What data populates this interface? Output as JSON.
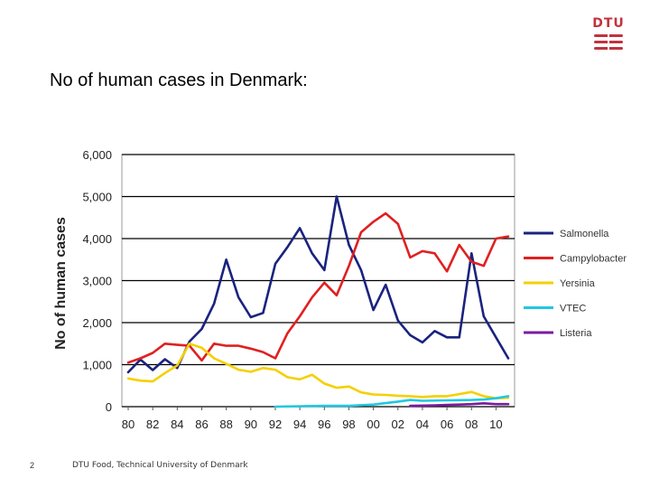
{
  "slide": {
    "title": "No of human cases in Denmark:",
    "page_number": "2",
    "footer": "DTU Food, Technical University of Denmark",
    "logo_text": "DTU",
    "logo_color": "#c0333d"
  },
  "chart_data": {
    "type": "line",
    "title": "",
    "xlabel": "",
    "ylabel": "No of human cases",
    "ylim": [
      0,
      6000
    ],
    "yticks": [
      0,
      1000,
      2000,
      3000,
      4000,
      5000,
      6000
    ],
    "ytick_labels": [
      "0",
      "1,000",
      "2,000",
      "3,000",
      "4,000",
      "5,000",
      "6,000"
    ],
    "xlim": [
      1980,
      2011
    ],
    "xticks": [
      1980,
      1982,
      1984,
      1986,
      1988,
      1990,
      1992,
      1994,
      1996,
      1998,
      2000,
      2002,
      2004,
      2006,
      2008,
      2010
    ],
    "xtick_labels": [
      "80",
      "82",
      "84",
      "86",
      "88",
      "90",
      "92",
      "94",
      "96",
      "98",
      "00",
      "02",
      "04",
      "06",
      "08",
      "10"
    ],
    "grid": "horizontal",
    "legend_position": "right",
    "series": [
      {
        "name": "Salmonella",
        "color": "#1a237e",
        "x": [
          1980,
          1981,
          1982,
          1983,
          1984,
          1985,
          1986,
          1987,
          1988,
          1989,
          1990,
          1991,
          1992,
          1993,
          1994,
          1995,
          1996,
          1997,
          1998,
          1999,
          2000,
          2001,
          2002,
          2003,
          2004,
          2005,
          2006,
          2007,
          2008,
          2009,
          2010,
          2011
        ],
        "values": [
          820,
          1120,
          870,
          1130,
          920,
          1550,
          1850,
          2450,
          3500,
          2600,
          2130,
          2230,
          3400,
          3800,
          4250,
          3650,
          3250,
          5000,
          3850,
          3250,
          2300,
          2900,
          2050,
          1700,
          1530,
          1800,
          1650,
          1650,
          3650,
          2150,
          1650,
          1150
        ]
      },
      {
        "name": "Campylobacter",
        "color": "#e02020",
        "x": [
          1980,
          1981,
          1982,
          1983,
          1984,
          1985,
          1986,
          1987,
          1988,
          1989,
          1990,
          1991,
          1992,
          1993,
          1994,
          1995,
          1996,
          1997,
          1998,
          1999,
          2000,
          2001,
          2002,
          2003,
          2004,
          2005,
          2006,
          2007,
          2008,
          2009,
          2010,
          2011
        ],
        "values": [
          1050,
          1150,
          1280,
          1500,
          1470,
          1450,
          1100,
          1500,
          1450,
          1450,
          1380,
          1300,
          1150,
          1750,
          2150,
          2600,
          2950,
          2650,
          3350,
          4150,
          4400,
          4600,
          4350,
          3550,
          3700,
          3650,
          3220,
          3850,
          3450,
          3350,
          4000,
          4050
        ]
      },
      {
        "name": "Yersinia",
        "color": "#f5d000",
        "x": [
          1980,
          1981,
          1982,
          1983,
          1984,
          1985,
          1986,
          1987,
          1988,
          1989,
          1990,
          1991,
          1992,
          1993,
          1994,
          1995,
          1996,
          1997,
          1998,
          1999,
          2000,
          2001,
          2002,
          2003,
          2004,
          2005,
          2006,
          2007,
          2008,
          2009,
          2010,
          2011
        ],
        "values": [
          670,
          620,
          600,
          800,
          980,
          1500,
          1400,
          1150,
          1020,
          880,
          830,
          920,
          880,
          700,
          650,
          760,
          550,
          450,
          480,
          340,
          290,
          280,
          260,
          250,
          230,
          250,
          250,
          300,
          350,
          250,
          200,
          210
        ]
      },
      {
        "name": "VTEC",
        "color": "#20c8e0",
        "x": [
          1992,
          1994,
          1996,
          1998,
          2000,
          2002,
          2003,
          2004,
          2006,
          2008,
          2009,
          2010,
          2011
        ],
        "values": [
          0,
          10,
          20,
          20,
          50,
          120,
          160,
          140,
          150,
          160,
          170,
          200,
          250
        ]
      },
      {
        "name": "Listeria",
        "color": "#7a1aa0",
        "x": [
          2003,
          2004,
          2005,
          2006,
          2007,
          2008,
          2009,
          2010,
          2011
        ],
        "values": [
          20,
          25,
          30,
          40,
          50,
          60,
          80,
          60,
          60
        ]
      }
    ]
  }
}
